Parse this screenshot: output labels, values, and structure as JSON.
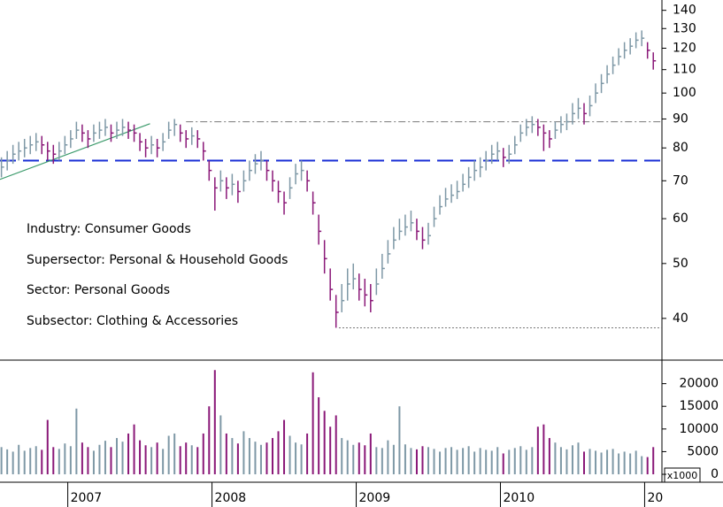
{
  "chart_data": {
    "type": "stock",
    "x": [
      2006.54,
      2006.58,
      2006.62,
      2006.66,
      2006.7,
      2006.74,
      2006.78,
      2006.82,
      2006.86,
      2006.9,
      2006.94,
      2006.98,
      2007.02,
      2007.06,
      2007.1,
      2007.14,
      2007.18,
      2007.22,
      2007.26,
      2007.3,
      2007.34,
      2007.38,
      2007.42,
      2007.46,
      2007.5,
      2007.54,
      2007.58,
      2007.62,
      2007.66,
      2007.7,
      2007.74,
      2007.78,
      2007.82,
      2007.86,
      2007.9,
      2007.94,
      2007.98,
      2008.02,
      2008.06,
      2008.1,
      2008.14,
      2008.18,
      2008.22,
      2008.26,
      2008.3,
      2008.34,
      2008.38,
      2008.42,
      2008.46,
      2008.5,
      2008.54,
      2008.58,
      2008.62,
      2008.66,
      2008.7,
      2008.74,
      2008.78,
      2008.82,
      2008.86,
      2008.9,
      2008.94,
      2008.98,
      2009.02,
      2009.06,
      2009.1,
      2009.14,
      2009.18,
      2009.22,
      2009.26,
      2009.3,
      2009.34,
      2009.38,
      2009.42,
      2009.46,
      2009.5,
      2009.54,
      2009.58,
      2009.62,
      2009.66,
      2009.7,
      2009.74,
      2009.78,
      2009.82,
      2009.86,
      2009.9,
      2009.94,
      2009.98,
      2010.02,
      2010.06,
      2010.1,
      2010.14,
      2010.18,
      2010.22,
      2010.26,
      2010.3,
      2010.34,
      2010.38,
      2010.42,
      2010.46,
      2010.5,
      2010.54,
      2010.58,
      2010.62,
      2010.66,
      2010.7,
      2010.74,
      2010.78,
      2010.82,
      2010.86,
      2010.9,
      2010.94,
      2010.98,
      2011.02,
      2011.06
    ],
    "high": [
      77,
      79,
      81,
      82,
      83,
      84,
      85,
      84,
      82,
      81,
      82,
      84,
      86,
      89,
      88,
      86,
      88,
      89,
      90,
      88,
      89,
      90,
      89,
      88,
      85,
      83,
      84,
      83,
      85,
      89,
      90,
      88,
      86,
      87,
      86,
      82,
      76,
      71,
      73,
      71,
      72,
      70,
      73,
      76,
      78,
      79,
      76,
      73,
      70,
      67,
      71,
      75,
      76,
      73,
      67,
      61,
      55,
      49,
      44,
      46,
      49,
      50,
      48,
      47,
      46,
      49,
      52,
      55,
      58,
      60,
      61,
      62,
      60,
      58,
      59,
      63,
      66,
      68,
      69,
      70,
      72,
      74,
      76,
      77,
      79,
      81,
      82,
      80,
      81,
      84,
      88,
      90,
      91,
      90,
      88,
      86,
      89,
      91,
      92,
      96,
      98,
      96,
      99,
      104,
      108,
      112,
      116,
      120,
      123,
      125,
      128,
      129,
      123,
      118
    ],
    "low": [
      71,
      73,
      75,
      76,
      77,
      78,
      79,
      78,
      76,
      75,
      76,
      78,
      80,
      83,
      82,
      80,
      82,
      83,
      84,
      82,
      83,
      84,
      83,
      82,
      79,
      77,
      78,
      77,
      79,
      83,
      84,
      82,
      80,
      81,
      80,
      76,
      70,
      62,
      67,
      65,
      66,
      64,
      67,
      70,
      72,
      73,
      70,
      67,
      64,
      61,
      65,
      69,
      70,
      67,
      61,
      54,
      48,
      43,
      38.5,
      41,
      43,
      45,
      43,
      42,
      41,
      44,
      47,
      50,
      53,
      55,
      56,
      57,
      55,
      53,
      54,
      58,
      61,
      63,
      64,
      65,
      67,
      68,
      70,
      71,
      73,
      75,
      76,
      74,
      75,
      78,
      82,
      84,
      85,
      84,
      79,
      80,
      83,
      85,
      86,
      88,
      90,
      88,
      91,
      96,
      100,
      104,
      108,
      112,
      115,
      117,
      120,
      121,
      115,
      110
    ],
    "close": [
      74,
      76,
      78,
      79,
      80,
      81,
      82,
      81,
      79,
      78,
      79,
      81,
      83,
      86,
      85,
      83,
      85,
      86,
      87,
      85,
      86,
      87,
      86,
      85,
      82,
      80,
      81,
      80,
      82,
      86,
      88,
      85,
      83,
      84,
      83,
      79,
      73,
      68,
      70,
      68,
      69,
      67,
      70,
      73,
      75,
      76,
      73,
      70,
      67,
      64,
      68,
      72,
      73,
      70,
      64,
      57,
      51,
      45,
      41,
      43,
      46,
      47,
      45,
      44,
      43,
      46,
      49,
      52,
      55,
      57,
      58,
      59,
      57,
      55,
      56,
      60,
      63,
      65,
      66,
      67,
      69,
      71,
      73,
      74,
      76,
      78,
      79,
      77,
      78,
      81,
      85,
      87,
      88,
      87,
      85,
      83,
      86,
      88,
      89,
      92,
      94,
      92,
      95,
      100,
      104,
      108,
      112,
      116,
      119,
      121,
      124,
      125,
      119,
      114
    ],
    "up_color": "#7e98a6",
    "down_color": "#8a1878",
    "log_scale": true,
    "xlim": [
      2006.53,
      2011.12
    ],
    "xticks": [
      2007,
      2008,
      2009,
      2010,
      {
        "value": 2011,
        "label": "20"
      }
    ],
    "ylim": [
      34,
      146
    ],
    "yticks": [
      40,
      50,
      60,
      70,
      80,
      90,
      100,
      110,
      120,
      130,
      140
    ],
    "levels": [
      {
        "y": 76,
        "x": [
          2006.53,
          2011.12
        ],
        "color": "#1a2fd6",
        "style": "dashed"
      },
      {
        "y": 89,
        "x": [
          2007.82,
          2011.12
        ],
        "color": "#777777",
        "style": "dashdot"
      },
      {
        "y": 38.5,
        "x": [
          2008.88,
          2011.12
        ],
        "color": "#777777",
        "style": "dotted"
      }
    ],
    "trendline": {
      "x": [
        2006.53,
        2007.57
      ],
      "y": [
        70.4,
        88.3
      ],
      "color": "#3a9a6a"
    },
    "annotations": [
      "Industry: Consumer Goods",
      "Supersector: Personal & Household Goods",
      "Sector: Personal Goods",
      "Subsector: Clothing & Accessories"
    ],
    "volume": {
      "values": [
        6000,
        5500,
        5000,
        6500,
        5200,
        5800,
        6200,
        5400,
        12000,
        6000,
        5600,
        6800,
        6200,
        14500,
        7000,
        6000,
        5200,
        6500,
        7400,
        6000,
        8000,
        7200,
        9000,
        11000,
        7500,
        6400,
        6000,
        7000,
        5600,
        8500,
        9000,
        6200,
        7000,
        6400,
        6000,
        9000,
        15000,
        23000,
        13000,
        9000,
        8000,
        6800,
        9500,
        8000,
        7200,
        6500,
        7000,
        8000,
        9500,
        12000,
        8500,
        7000,
        6600,
        9000,
        22500,
        17000,
        14000,
        10500,
        13000,
        8000,
        7500,
        6500,
        7000,
        6400,
        9000,
        6000,
        5800,
        7500,
        6500,
        15000,
        6600,
        5800,
        5500,
        6200,
        6000,
        5600,
        5000,
        5800,
        6000,
        5400,
        5800,
        6200,
        5000,
        5800,
        5400,
        5200,
        6000,
        4600,
        5400,
        5800,
        6200,
        5400,
        6000,
        10500,
        11000,
        8000,
        7000,
        6000,
        5500,
        6400,
        7000,
        5000,
        5600,
        5200,
        4800,
        5400,
        5600,
        4600,
        5000,
        4600,
        5200,
        4000,
        3800,
        6000
      ],
      "ylim": [
        -1750,
        25000
      ],
      "yticks": [
        0,
        5000,
        10000,
        15000,
        20000
      ],
      "unit": "x1000"
    }
  }
}
